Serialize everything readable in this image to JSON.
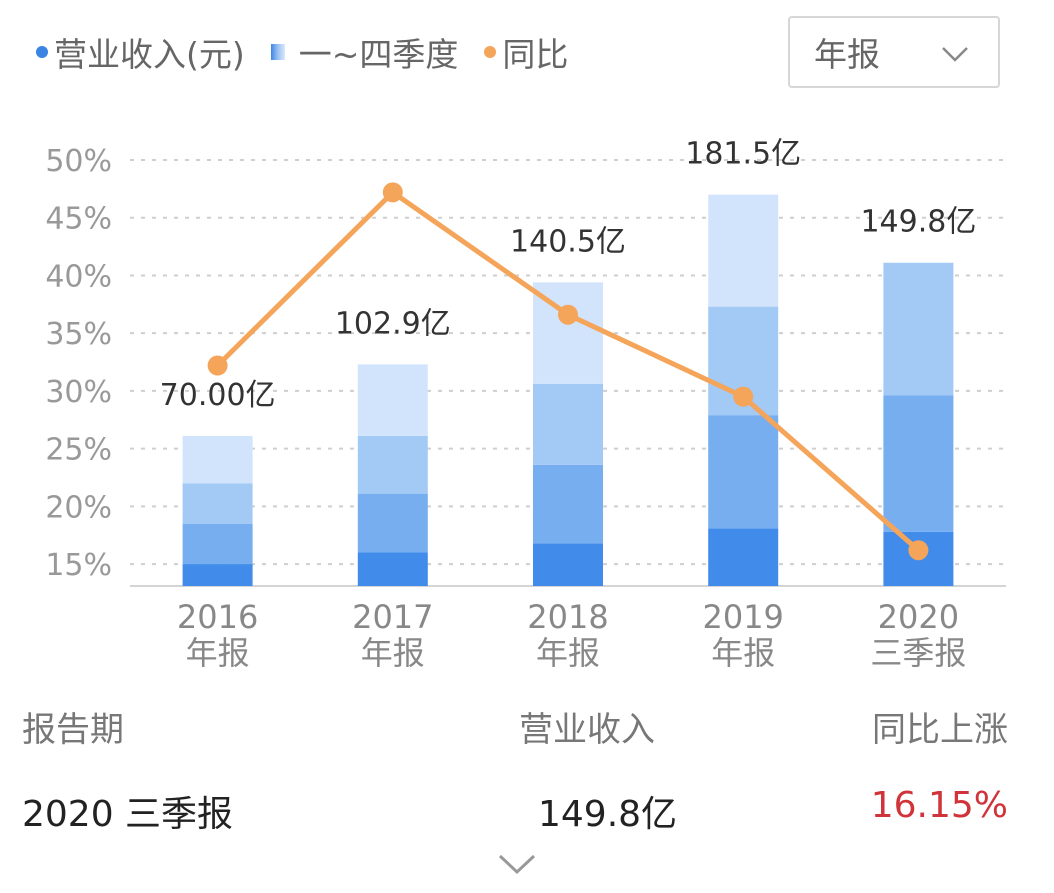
{
  "legend": {
    "revenue": "营业收入(元)",
    "quarters": "一~四季度",
    "yoy": "同比"
  },
  "period_select": {
    "selected": "年报"
  },
  "colors": {
    "q1": "#418bea",
    "q2": "#76aef0",
    "q3": "#a3c9f5",
    "q4": "#d2e4fb",
    "line": "#f5a55a",
    "grid": "#cfcfcf",
    "legend_dot_blue": "#3a84e4",
    "positive": "#d0343a"
  },
  "chart_data": {
    "type": "bar",
    "categories": [
      [
        "2016",
        "年报"
      ],
      [
        "2017",
        "年报"
      ],
      [
        "2018",
        "年报"
      ],
      [
        "2019",
        "年报"
      ],
      [
        "2020",
        "三季报"
      ]
    ],
    "bar_labels": [
      "70.00亿",
      "102.9亿",
      "140.5亿",
      "181.5亿",
      "149.8亿"
    ],
    "stacks_cumulative": [
      [
        15.0,
        18.5,
        22.0,
        26.1
      ],
      [
        16.0,
        21.1,
        26.1,
        32.3
      ],
      [
        16.8,
        23.6,
        30.6,
        39.4
      ],
      [
        18.1,
        27.9,
        37.3,
        47.0
      ],
      [
        17.8,
        29.6,
        41.1
      ]
    ],
    "line_series": {
      "values": [
        32.2,
        47.2,
        36.6,
        29.5,
        16.2
      ]
    },
    "y_ticks": [
      "50%",
      "45%",
      "40%",
      "35%",
      "30%",
      "25%",
      "20%",
      "15%"
    ],
    "ylim": [
      13.1,
      50
    ]
  },
  "table": {
    "headers": {
      "period": "报告期",
      "revenue": "营业收入",
      "yoy": "同比上涨"
    },
    "row": {
      "period": "2020 三季报",
      "revenue": "149.8亿",
      "yoy": "16.15%"
    }
  }
}
